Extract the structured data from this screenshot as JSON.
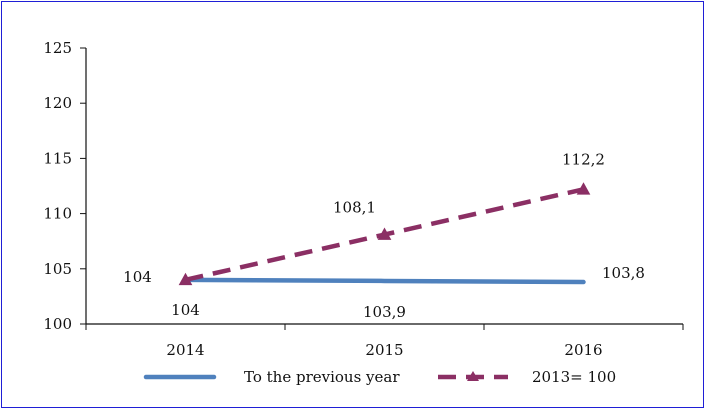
{
  "chart_data": {
    "type": "line",
    "title": "",
    "xlabel": "",
    "ylabel": "",
    "categories": [
      "2014",
      "2015",
      "2016"
    ],
    "ylim": [
      100,
      125
    ],
    "yticks": [
      "100",
      "105",
      "110",
      "115",
      "120",
      "125"
    ],
    "grid": false,
    "legend": "bottom",
    "series": [
      {
        "name": "To the previous year",
        "values": [
          104,
          103.9,
          103.8
        ],
        "labels": [
          "104",
          "103,9",
          "103,8"
        ],
        "color": "#4f81bd",
        "style": "solid"
      },
      {
        "name": "2013= 100",
        "values": [
          104,
          108.1,
          112.2
        ],
        "labels": [
          "104",
          "108,1",
          "112,2"
        ],
        "color": "#8b2f64",
        "style": "dashed",
        "marker": "triangle"
      }
    ]
  }
}
